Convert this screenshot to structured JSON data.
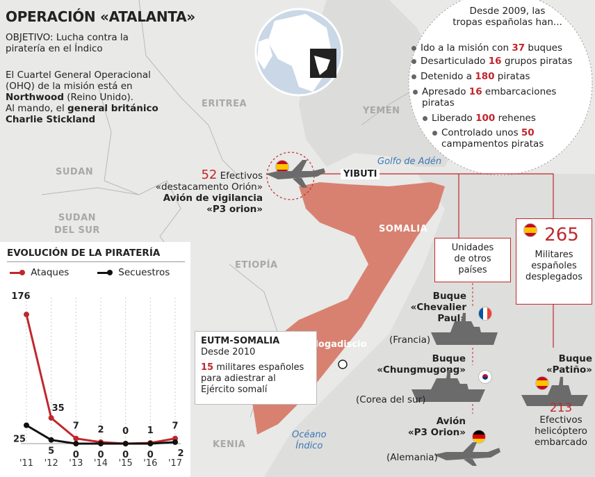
{
  "title": "OPERACIÓN «ATALANTA»",
  "objective": [
    "OBJETIVO: Lucha contra la",
    "piratería en el Índico"
  ],
  "hq": {
    "line1": "El Cuartel General Operacional",
    "line2": "(OHQ) de la misión está en",
    "place": "Northwood",
    "place_rest": " (Reino Unido).",
    "cmd_pre": "Al mando, el ",
    "cmd_bold": "general británico",
    "cmd_name": "Charlie Stickland"
  },
  "countries": {
    "eritrea": "ERITREA",
    "yemen": "YEMEN",
    "sudan": "SUDAN",
    "sudan_sur_1": "SUDAN",
    "sudan_sur_2": "DEL SUR",
    "etiopia": "ETIOPÍA",
    "somalia": "SOMALIA",
    "kenia": "KENIA"
  },
  "places": {
    "gulf": "Golfo de Adén",
    "ocean_1": "Océano",
    "ocean_2": "Índico",
    "yibuti": "YIBUTI",
    "mogadiscio": "Mogadiscio"
  },
  "since": {
    "header_1": "Desde 2009, las",
    "header_2": "tropas españolas han...",
    "items": [
      {
        "pre": "Ido a la misión con ",
        "num": "37",
        "post": " buques"
      },
      {
        "pre": "Desarticulado ",
        "num": "16",
        "post": " grupos piratas"
      },
      {
        "pre": "Detenido a ",
        "num": "180",
        "post": " piratas"
      },
      {
        "pre": "Apresado ",
        "num": "16",
        "post": " embarcaciones",
        "post2": "piratas"
      },
      {
        "pre": "Liberado ",
        "num": "100",
        "post": " rehenes"
      },
      {
        "pre": "Controlado unos ",
        "num": "50",
        "post": "",
        "post2": "campamentos piratas"
      }
    ]
  },
  "orion": {
    "num": "52",
    "efectivos": " Efectivos",
    "line2": "«destacamento Orión»",
    "line3": "Avión de vigilancia",
    "line4": "«P3 orion»"
  },
  "spain_box": {
    "num": "265",
    "l1": "Militares",
    "l2": "españoles",
    "l3": "desplegados"
  },
  "others_box": {
    "l1": "Unidades",
    "l2": "de otros",
    "l3": "países"
  },
  "units": {
    "chevalier": {
      "l1": "Buque",
      "l2": "«Chevalier",
      "l3": "Paul»",
      "country": "(Francia)"
    },
    "chungmugong": {
      "l1": "Buque",
      "l2": "«Chungmugong»",
      "country": "(Corea del sur)"
    },
    "p3": {
      "l1": "Avión",
      "l2": "«P3 Orion»",
      "country": "(Alemania)"
    },
    "patino": {
      "l1": "Buque",
      "l2": "«Patiño»",
      "num": "213",
      "l3": "Efectivos",
      "l4": "helicóptero",
      "l5": "embarcado"
    }
  },
  "eutm": {
    "title": "EUTM-SOMALIA",
    "since": "Desde 2010",
    "num": "15",
    "l1": " militares españoles",
    "l2": "para adiestrar al",
    "l3": "Ejército somalí"
  },
  "chart_data": {
    "type": "line",
    "title": "EVOLUCIÓN DE LA PIRATERÍA",
    "categories": [
      "'11",
      "'12",
      "'13",
      "'14",
      "'15",
      "'16",
      "'17"
    ],
    "series": [
      {
        "name": "Ataques",
        "values": [
          176,
          35,
          7,
          2,
          0,
          1,
          7
        ],
        "color": "#c0272d"
      },
      {
        "name": "Secuestros",
        "values": [
          25,
          5,
          0,
          0,
          0,
          0,
          2
        ],
        "color": "#111111"
      }
    ],
    "ylim": [
      0,
      180
    ]
  }
}
